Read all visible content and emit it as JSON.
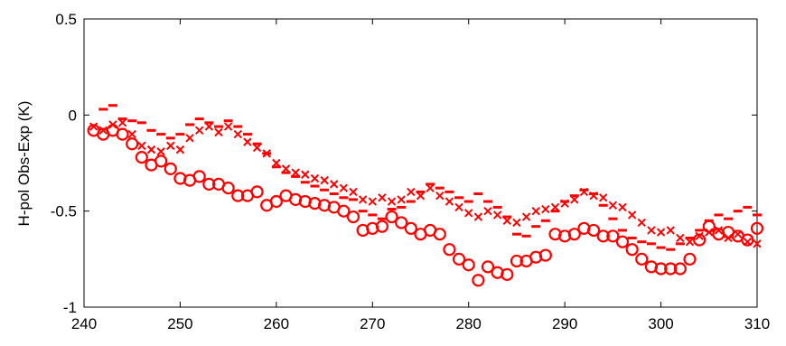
{
  "chart_data": {
    "type": "scatter",
    "title": "",
    "xlabel": "",
    "ylabel": "H-pol Obs-Exp (K)",
    "xlim": [
      240,
      310
    ],
    "ylim": [
      -1,
      0.5
    ],
    "xticks": [
      240,
      250,
      260,
      270,
      280,
      290,
      300,
      310
    ],
    "yticks": [
      0.5,
      0,
      -0.5,
      -1
    ],
    "xtick_labels": [
      "240",
      "250",
      "260",
      "270",
      "280",
      "290",
      "300",
      "310"
    ],
    "ytick_labels": [
      "0.5",
      "0",
      "-0.5",
      "-1"
    ],
    "grid": false,
    "legend": "none",
    "color": "#ff0000",
    "series": [
      {
        "marker": "circle",
        "x": [
          241,
          242,
          243,
          244,
          245,
          246,
          247,
          248,
          249,
          250,
          251,
          252,
          253,
          254,
          255,
          256,
          257,
          258,
          259,
          260,
          261,
          262,
          263,
          264,
          265,
          266,
          267,
          268,
          269,
          270,
          271,
          272,
          273,
          274,
          275,
          276,
          277,
          278,
          279,
          280,
          281,
          282,
          283,
          284,
          285,
          286,
          287,
          288,
          289,
          290,
          291,
          292,
          293,
          294,
          295,
          296,
          297,
          298,
          299,
          300,
          301,
          302,
          303,
          304,
          305,
          306,
          307,
          308,
          309,
          310
        ],
        "y": [
          -0.08,
          -0.1,
          -0.08,
          -0.1,
          -0.15,
          -0.22,
          -0.26,
          -0.24,
          -0.28,
          -0.33,
          -0.34,
          -0.32,
          -0.36,
          -0.36,
          -0.38,
          -0.42,
          -0.42,
          -0.4,
          -0.47,
          -0.45,
          -0.42,
          -0.44,
          -0.45,
          -0.46,
          -0.47,
          -0.48,
          -0.5,
          -0.53,
          -0.6,
          -0.59,
          -0.58,
          -0.53,
          -0.56,
          -0.59,
          -0.62,
          -0.6,
          -0.62,
          -0.7,
          -0.75,
          -0.78,
          -0.86,
          -0.79,
          -0.82,
          -0.83,
          -0.76,
          -0.76,
          -0.74,
          -0.73,
          -0.62,
          -0.63,
          -0.62,
          -0.59,
          -0.6,
          -0.63,
          -0.63,
          -0.66,
          -0.7,
          -0.75,
          -0.79,
          -0.8,
          -0.8,
          -0.8,
          -0.75,
          -0.65,
          -0.58,
          -0.62,
          -0.61,
          -0.63,
          -0.65,
          -0.59
        ]
      },
      {
        "marker": "cross",
        "x": [
          241,
          242,
          243,
          244,
          245,
          246,
          247,
          248,
          249,
          250,
          251,
          252,
          253,
          254,
          255,
          256,
          257,
          258,
          259,
          260,
          261,
          262,
          263,
          264,
          265,
          266,
          267,
          268,
          269,
          270,
          271,
          272,
          273,
          274,
          275,
          276,
          277,
          278,
          279,
          280,
          281,
          282,
          283,
          284,
          285,
          286,
          287,
          288,
          289,
          290,
          291,
          292,
          293,
          294,
          295,
          296,
          297,
          298,
          299,
          300,
          301,
          302,
          303,
          304,
          305,
          306,
          307,
          308,
          309,
          310
        ],
        "y": [
          -0.06,
          -0.08,
          -0.05,
          -0.04,
          -0.1,
          -0.16,
          -0.18,
          -0.19,
          -0.16,
          -0.18,
          -0.12,
          -0.08,
          -0.06,
          -0.09,
          -0.06,
          -0.1,
          -0.14,
          -0.17,
          -0.2,
          -0.25,
          -0.28,
          -0.3,
          -0.31,
          -0.33,
          -0.34,
          -0.36,
          -0.38,
          -0.4,
          -0.44,
          -0.45,
          -0.43,
          -0.45,
          -0.44,
          -0.4,
          -0.42,
          -0.38,
          -0.42,
          -0.45,
          -0.48,
          -0.51,
          -0.53,
          -0.5,
          -0.52,
          -0.55,
          -0.56,
          -0.53,
          -0.5,
          -0.49,
          -0.48,
          -0.46,
          -0.44,
          -0.4,
          -0.42,
          -0.43,
          -0.47,
          -0.48,
          -0.52,
          -0.56,
          -0.6,
          -0.61,
          -0.6,
          -0.64,
          -0.66,
          -0.63,
          -0.61,
          -0.6,
          -0.64,
          -0.62,
          -0.66,
          -0.67
        ]
      },
      {
        "marker": "dash",
        "x": [
          242,
          243,
          244,
          245,
          246,
          247,
          248,
          249,
          250,
          251,
          252,
          253,
          254,
          255,
          256,
          257,
          258,
          259,
          260,
          261,
          262,
          263,
          264,
          265,
          266,
          267,
          268,
          269,
          270,
          271,
          272,
          273,
          274,
          275,
          276,
          277,
          278,
          279,
          280,
          281,
          282,
          283,
          284,
          285,
          286,
          287,
          288,
          289,
          290,
          291,
          292,
          293,
          294,
          295,
          296,
          297,
          298,
          299,
          300,
          301,
          302,
          303,
          304,
          305,
          306,
          307,
          308,
          309,
          310
        ],
        "y": [
          0.03,
          0.05,
          -0.02,
          -0.03,
          -0.04,
          -0.08,
          -0.1,
          -0.12,
          -0.1,
          -0.05,
          -0.02,
          -0.04,
          -0.06,
          -0.03,
          -0.06,
          -0.1,
          -0.15,
          -0.2,
          -0.27,
          -0.3,
          -0.32,
          -0.35,
          -0.37,
          -0.39,
          -0.41,
          -0.43,
          -0.44,
          -0.5,
          -0.52,
          -0.54,
          -0.49,
          -0.48,
          -0.45,
          -0.4,
          -0.36,
          -0.38,
          -0.4,
          -0.43,
          -0.45,
          -0.41,
          -0.45,
          -0.48,
          -0.53,
          -0.62,
          -0.63,
          -0.58,
          -0.55,
          -0.5,
          -0.45,
          -0.42,
          -0.39,
          -0.41,
          -0.47,
          -0.54,
          -0.6,
          -0.64,
          -0.66,
          -0.67,
          -0.69,
          -0.7,
          -0.67,
          -0.64,
          -0.6,
          -0.55,
          -0.52,
          -0.54,
          -0.5,
          -0.48,
          -0.52
        ]
      }
    ]
  }
}
